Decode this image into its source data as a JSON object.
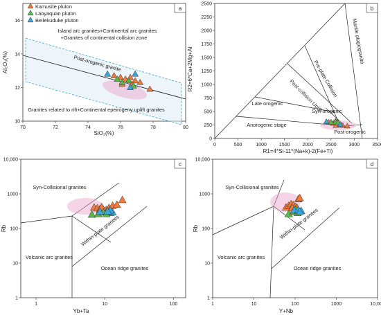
{
  "legend": {
    "items": [
      {
        "label": "Kamusite pluton",
        "color": "#f07a3e"
      },
      {
        "label": "Laoyaquan pluton",
        "color": "#5ab848"
      },
      {
        "label": "Beilekuduke pluton",
        "color": "#3aa6dd"
      }
    ]
  },
  "chart_data": [
    {
      "panel": "a",
      "type": "scatter",
      "xlabel": "SiO2(%)",
      "ylabel": "Al2O3(%)",
      "xlim": [
        70,
        80
      ],
      "ylim": [
        10,
        17
      ],
      "xticks": [
        "70",
        "72",
        "74",
        "76",
        "78",
        "80"
      ],
      "yticks": [
        "10",
        "12",
        "14",
        "16"
      ],
      "annotations": [
        "Island arc granites+Continental arc granites",
        "+Granites of continental collision zone",
        "Post-orogenic granite",
        "Granites related to rift+Continental epeirogeny uplift granites"
      ],
      "series": [
        {
          "name": "Kamusite pluton",
          "points": [
            [
              75.6,
              12.7
            ],
            [
              76.0,
              12.6
            ],
            [
              76.3,
              12.5
            ],
            [
              76.6,
              12.6
            ],
            [
              76.9,
              12.4
            ],
            [
              77.2,
              12.3
            ],
            [
              76.1,
              12.2
            ],
            [
              76.7,
              12.2
            ],
            [
              77.8,
              11.9
            ]
          ]
        },
        {
          "name": "Laoyaquan pluton",
          "points": [
            [
              75.8,
              12.5
            ],
            [
              76.1,
              12.3
            ],
            [
              76.5,
              12.4
            ],
            [
              76.8,
              12.1
            ]
          ]
        },
        {
          "name": "Beilekuduke pluton",
          "points": [
            [
              75.2,
              12.8
            ],
            [
              76.9,
              12.8
            ],
            [
              76.6,
              12.0
            ]
          ]
        }
      ]
    },
    {
      "panel": "b",
      "type": "scatter",
      "xlabel": "R1=4*Si-11*(Na+k)-2(Fe+Ti)",
      "ylabel": "R2=6*Ca+2Mg+Al",
      "xlim": [
        0,
        3500
      ],
      "ylim": [
        0,
        2500
      ],
      "xticks": [
        "0",
        "500",
        "1000",
        "1500",
        "2000",
        "2500",
        "3000",
        "3500"
      ],
      "yticks": [
        "0",
        "250",
        "500",
        "750",
        "1000",
        "1250",
        "1500",
        "1750",
        "2000",
        "2250",
        "2500"
      ],
      "annotations": [
        "Mantle plagiogranite",
        "Pre-plate Collision",
        "Post-collision Uplift",
        "Late orogenic",
        "Syn-orogenic",
        "Anorogenic stage",
        "Post-orogenic"
      ],
      "series": [
        {
          "name": "Kamusite pluton",
          "points": [
            [
              2450,
              300
            ],
            [
              2550,
              280
            ],
            [
              2600,
              320
            ],
            [
              2650,
              270
            ],
            [
              2700,
              250
            ],
            [
              2750,
              240
            ],
            [
              2850,
              230
            ],
            [
              2600,
              240
            ]
          ]
        },
        {
          "name": "Laoyaquan pluton",
          "points": [
            [
              2500,
              300
            ],
            [
              2600,
              300
            ],
            [
              2650,
              290
            ]
          ]
        },
        {
          "name": "Beilekuduke pluton",
          "points": [
            [
              2400,
              310
            ],
            [
              2700,
              260
            ]
          ]
        }
      ]
    },
    {
      "panel": "c",
      "type": "scatter",
      "xscale": "log",
      "yscale": "log",
      "xlabel": "Yb+Ta",
      "ylabel": "Rb",
      "xlim": [
        0.6,
        150
      ],
      "ylim": [
        1,
        10000
      ],
      "xticks": [
        "1",
        "10",
        "100"
      ],
      "yticks": [
        "1",
        "10",
        "100",
        "1000",
        "10,000"
      ],
      "annotations": [
        "Syn-Collisional granites",
        "Within-plate granites",
        "Volcanic arc granites",
        "Ocean ridge granites"
      ],
      "series": [
        {
          "name": "Kamusite pluton",
          "points": [
            [
              7.0,
              400
            ],
            [
              7.8,
              380
            ],
            [
              8.5,
              360
            ],
            [
              9.5,
              350
            ],
            [
              10.5,
              340
            ],
            [
              11.5,
              390
            ],
            [
              13,
              450
            ],
            [
              15,
              480
            ],
            [
              18,
              660
            ],
            [
              9.0,
              410
            ]
          ]
        },
        {
          "name": "Laoyaquan pluton",
          "points": [
            [
              6.5,
              250
            ],
            [
              8.0,
              260
            ],
            [
              9.5,
              290
            ],
            [
              11.0,
              300
            ],
            [
              12.0,
              280
            ],
            [
              10.5,
              260
            ]
          ]
        },
        {
          "name": "Beilekuduke pluton",
          "points": [
            [
              8.5,
              300
            ],
            [
              13,
              290
            ],
            [
              12,
              330
            ],
            [
              11,
              310
            ]
          ]
        }
      ]
    },
    {
      "panel": "d",
      "type": "scatter",
      "xscale": "log",
      "yscale": "log",
      "xlabel": "Y+Nb",
      "ylabel": "Rb",
      "xlim": [
        1,
        10000
      ],
      "ylim": [
        1,
        10000
      ],
      "xticks": [
        "1",
        "10",
        "100",
        "1000",
        "10,000"
      ],
      "yticks": [
        "1",
        "10",
        "100",
        "1000",
        "10,000"
      ],
      "annotations": [
        "Syn-Collisional granites",
        "Within-plate granites",
        "Volcanic arc granites",
        "Ocean ridge granites"
      ],
      "series": [
        {
          "name": "Kamusite pluton",
          "points": [
            [
              60,
              400
            ],
            [
              70,
              450
            ],
            [
              80,
              500
            ],
            [
              90,
              470
            ],
            [
              100,
              420
            ],
            [
              110,
              400
            ],
            [
              120,
              700
            ],
            [
              130,
              750
            ],
            [
              85,
              380
            ]
          ]
        },
        {
          "name": "Laoyaquan pluton",
          "points": [
            [
              70,
              260
            ],
            [
              90,
              300
            ],
            [
              105,
              350
            ],
            [
              125,
              300
            ],
            [
              115,
              280
            ]
          ]
        },
        {
          "name": "Beilekuduke pluton",
          "points": [
            [
              95,
              330
            ],
            [
              120,
              340
            ],
            [
              140,
              320
            ],
            [
              130,
              300
            ]
          ]
        }
      ]
    }
  ]
}
